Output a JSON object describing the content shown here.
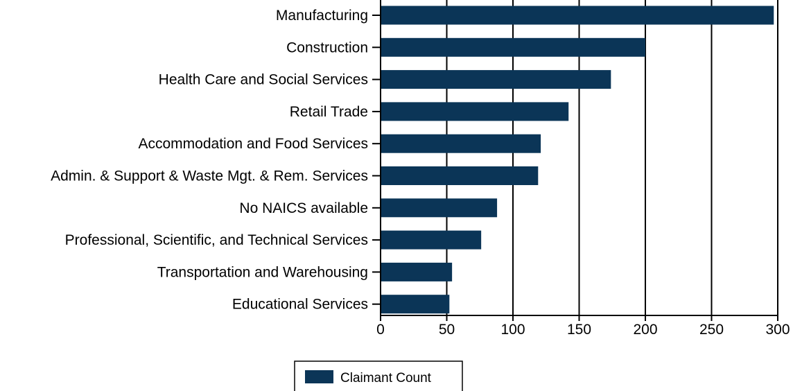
{
  "chart_data": {
    "type": "bar",
    "orientation": "horizontal",
    "categories": [
      "Manufacturing",
      "Construction",
      "Health Care and Social Services",
      "Retail Trade",
      "Accommodation and Food Services",
      "Admin. & Support & Waste Mgt. & Rem. Services",
      "No NAICS available",
      "Professional, Scientific, and Technical Services",
      "Transportation and Warehousing",
      "Educational Services"
    ],
    "series": [
      {
        "name": "Claimant Count",
        "values": [
          297,
          200,
          174,
          142,
          121,
          119,
          88,
          76,
          54,
          52
        ],
        "color": "#0b3557"
      }
    ],
    "x_ticks": [
      "0",
      "50",
      "100",
      "150",
      "200",
      "250",
      "300"
    ],
    "xlim": [
      0,
      300
    ],
    "grid": true,
    "legend_position": "bottom-center"
  }
}
